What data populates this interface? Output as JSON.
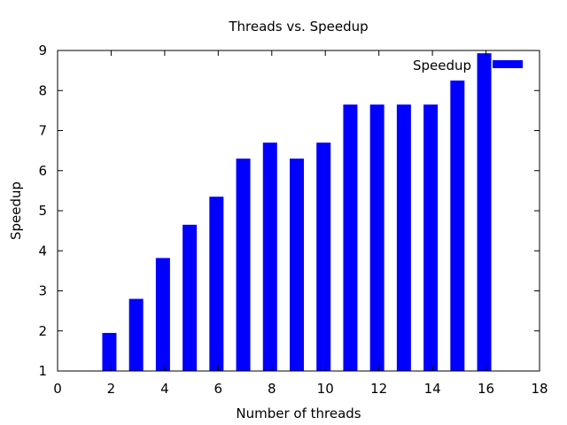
{
  "chart_data": {
    "type": "bar",
    "title": "Threads vs. Speedup",
    "xlabel": "Number of threads",
    "ylabel": "Speedup",
    "xlim": [
      0,
      18
    ],
    "ylim": [
      1,
      9
    ],
    "xticks": [
      "0",
      "2",
      "4",
      "6",
      "8",
      "10",
      "12",
      "14",
      "16",
      "18"
    ],
    "yticks": [
      "1",
      "2",
      "3",
      "4",
      "5",
      "6",
      "7",
      "8",
      "9"
    ],
    "grid": false,
    "legend_position": "top-right",
    "series": [
      {
        "name": "Speedup",
        "color": "#0000ff",
        "x": [
          2,
          3,
          4,
          5,
          6,
          7,
          8,
          9,
          10,
          11,
          12,
          13,
          14,
          15,
          16
        ],
        "values": [
          1.95,
          2.8,
          3.82,
          4.65,
          5.35,
          6.3,
          6.7,
          6.3,
          6.7,
          7.65,
          7.65,
          7.65,
          7.65,
          8.25,
          8.93
        ]
      }
    ]
  }
}
